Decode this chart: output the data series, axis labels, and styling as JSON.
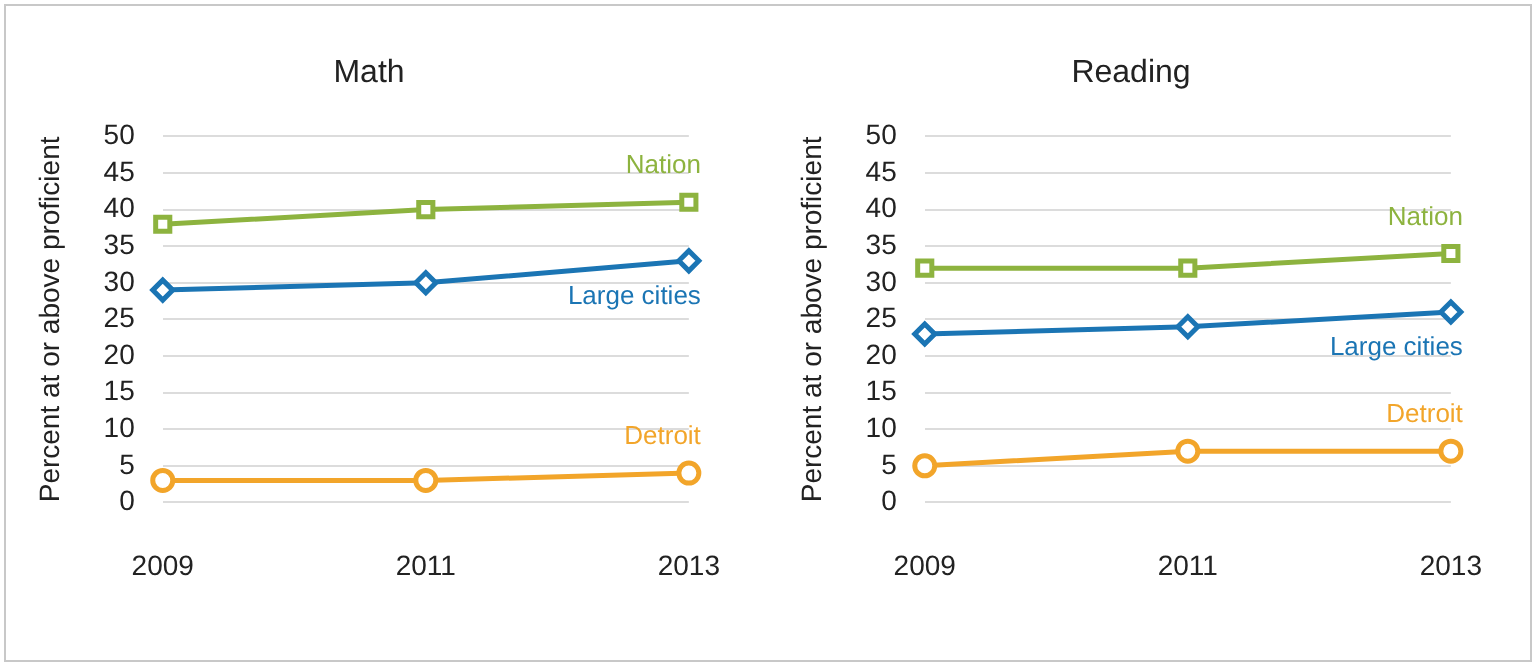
{
  "chart_data": [
    {
      "type": "line",
      "title": "Math",
      "ylabel": "Percent at or above proficient",
      "categories": [
        "2009",
        "2011",
        "2013"
      ],
      "ylim": [
        0,
        50
      ],
      "yticks": [
        0,
        5,
        10,
        15,
        20,
        25,
        30,
        35,
        40,
        45,
        50
      ],
      "grid": "y",
      "legend": false,
      "series": [
        {
          "name": "Nation",
          "color": "#8db33f",
          "values": [
            38,
            40,
            41
          ],
          "marker": "square"
        },
        {
          "name": "Large cities",
          "color": "#1b75b4",
          "values": [
            29,
            30,
            33
          ],
          "marker": "diamond"
        },
        {
          "name": "Detroit",
          "color": "#f2a52a",
          "values": [
            3,
            3,
            4
          ],
          "marker": "circle"
        }
      ]
    },
    {
      "type": "line",
      "title": "Reading",
      "ylabel": "Percent at or above proficient",
      "categories": [
        "2009",
        "2011",
        "2013"
      ],
      "ylim": [
        0,
        50
      ],
      "yticks": [
        0,
        5,
        10,
        15,
        20,
        25,
        30,
        35,
        40,
        45,
        50
      ],
      "grid": "y",
      "legend": false,
      "series": [
        {
          "name": "Nation",
          "color": "#8db33f",
          "values": [
            32,
            32,
            34
          ],
          "marker": "square"
        },
        {
          "name": "Large cities",
          "color": "#1b75b4",
          "values": [
            23,
            24,
            26
          ],
          "marker": "diamond"
        },
        {
          "name": "Detroit",
          "color": "#f2a52a",
          "values": [
            5,
            7,
            7
          ],
          "marker": "circle"
        }
      ]
    }
  ]
}
